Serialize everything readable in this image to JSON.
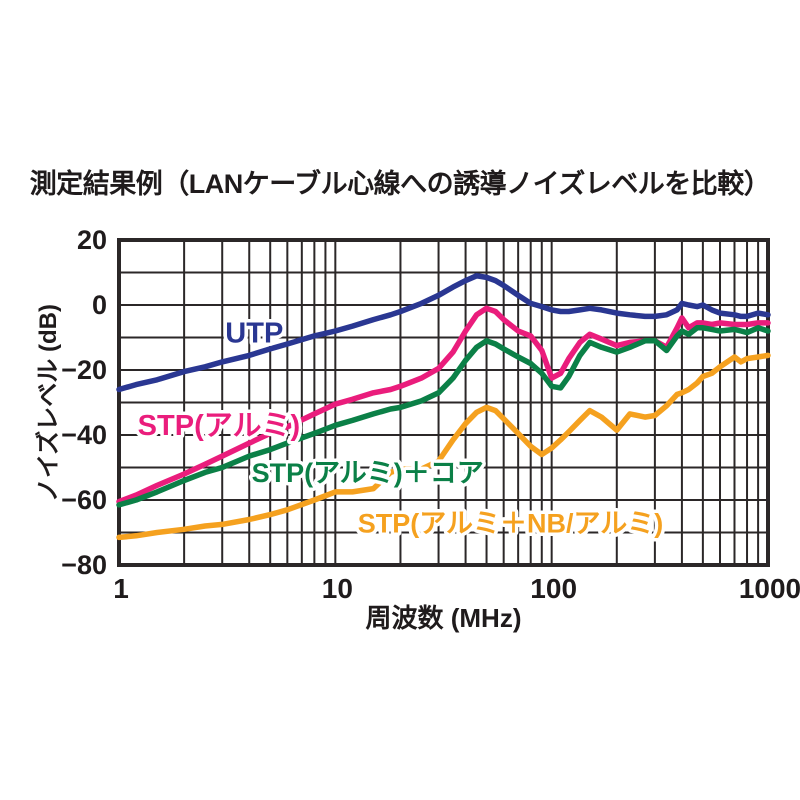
{
  "title": "測定結果例（LANケーブル心線への誘導ノイズレベルを比較）",
  "colors": {
    "grid": "#2b2728",
    "text": "#1f1b1c",
    "background": "#ffffff"
  },
  "chart_data": {
    "type": "line",
    "title": "測定結果例（LANケーブル心線への誘導ノイズレベルを比較）",
    "xlabel": "周波数 (MHz)",
    "ylabel": "ノイズレベル (dB)",
    "x_scale": "log",
    "x_range": [
      1,
      1000
    ],
    "y_range": [
      -80,
      20
    ],
    "grid": "on, log minor verticals, 10 dB horizontals",
    "legend_position": "inline labels on plot",
    "x_ticks": [
      {
        "value": 1,
        "label": "1"
      },
      {
        "value": 10,
        "label": "10"
      },
      {
        "value": 100,
        "label": "100"
      },
      {
        "value": 1000,
        "label": "1000"
      }
    ],
    "y_ticks": [
      {
        "value": 20,
        "label": "20"
      },
      {
        "value": 0,
        "label": "0"
      },
      {
        "value": -20,
        "label": "−20"
      },
      {
        "value": -40,
        "label": "−40"
      },
      {
        "value": -60,
        "label": "−60"
      },
      {
        "value": -80,
        "label": "−80"
      }
    ],
    "frequencies_mhz": [
      1,
      1.2,
      1.5,
      2,
      2.5,
      3,
      4,
      5,
      6,
      8,
      10,
      12,
      15,
      18,
      20,
      25,
      30,
      35,
      40,
      45,
      50,
      55,
      60,
      70,
      80,
      90,
      100,
      110,
      120,
      135,
      150,
      170,
      200,
      230,
      270,
      300,
      340,
      380,
      400,
      430,
      470,
      500,
      550,
      600,
      700,
      750,
      800,
      900,
      1000
    ],
    "series": [
      {
        "name": "UTP",
        "color": "#2a3792",
        "label": {
          "text": "UTP",
          "x_mhz": 3.1,
          "y_db": -11.5,
          "font_px": 29
        },
        "values": [
          -26,
          -24.5,
          -23,
          -20.5,
          -19,
          -17.5,
          -15.5,
          -13.5,
          -12,
          -9.5,
          -8,
          -6.5,
          -4.5,
          -3,
          -2,
          0.5,
          3,
          5.5,
          7.5,
          9,
          8.5,
          7.5,
          6,
          3,
          0.5,
          -0.5,
          -1.5,
          -2,
          -2,
          -1.5,
          -1,
          -1.5,
          -2.5,
          -3,
          -3.5,
          -3.5,
          -3,
          -1.5,
          0.5,
          0,
          -0.5,
          0,
          -1.5,
          -2.5,
          -3,
          -3.5,
          -3.5,
          -2.5,
          -3
        ]
      },
      {
        "name": "STP(アルミ)",
        "color": "#ea1d7c",
        "label": {
          "text": "STP(アルミ)",
          "x_mhz": 1.22,
          "y_db": -40,
          "font_px": 29
        },
        "values": [
          -60.5,
          -58.5,
          -55.5,
          -52,
          -49,
          -46.5,
          -42.5,
          -39.5,
          -37.5,
          -33.5,
          -30.5,
          -29,
          -27,
          -26,
          -25,
          -22.5,
          -19.5,
          -14.5,
          -8,
          -3,
          -1,
          -2,
          -4.5,
          -8,
          -9.5,
          -14,
          -22.5,
          -21,
          -16.5,
          -11.5,
          -9,
          -10.5,
          -12.5,
          -11.5,
          -11,
          -11,
          -13,
          -7,
          -4,
          -7,
          -5.5,
          -5.5,
          -6,
          -5.5,
          -6,
          -6,
          -6,
          -5.5,
          -5.5
        ]
      },
      {
        "name": "STP(アルミ)＋コア",
        "color": "#0b8047",
        "label": {
          "text": "STP(アルミ)＋コア",
          "x_mhz": 4.1,
          "y_db": -54.5,
          "font_px": 27
        },
        "values": [
          -61.5,
          -60,
          -57.5,
          -54,
          -51.5,
          -50,
          -46.5,
          -44.5,
          -42.5,
          -39.5,
          -37,
          -35.5,
          -33.5,
          -32,
          -31.5,
          -29.5,
          -27,
          -22.5,
          -17,
          -13,
          -11,
          -12,
          -13.5,
          -16,
          -18,
          -21,
          -25,
          -25.5,
          -22,
          -15.5,
          -11.5,
          -13,
          -14.5,
          -13,
          -11,
          -11,
          -14,
          -9.5,
          -8,
          -9,
          -7,
          -7,
          -7.5,
          -8,
          -7.5,
          -8,
          -8.5,
          -7,
          -8
        ]
      },
      {
        "name": "STP(アルミ＋NB/アルミ)",
        "color": "#f5a11f",
        "label": {
          "text": "STP(アルミ＋NB/アルミ)",
          "x_mhz": 12.7,
          "y_db": -70,
          "font_px": 27
        },
        "values": [
          -71.5,
          -71,
          -70,
          -69,
          -68,
          -67.5,
          -66,
          -64.5,
          -63,
          -60,
          -57.5,
          -57.5,
          -56.5,
          -51.5,
          -50.5,
          -50.5,
          -48,
          -41.5,
          -36.5,
          -33,
          -31.5,
          -32.5,
          -35,
          -39.5,
          -43.5,
          -46,
          -44,
          -41.5,
          -39,
          -35.5,
          -32.5,
          -34.5,
          -38.5,
          -33.5,
          -34.5,
          -34,
          -31,
          -27.5,
          -27,
          -26,
          -24,
          -22,
          -21,
          -19,
          -16,
          -17.5,
          -16.5,
          -16,
          -15.5
        ]
      }
    ]
  }
}
